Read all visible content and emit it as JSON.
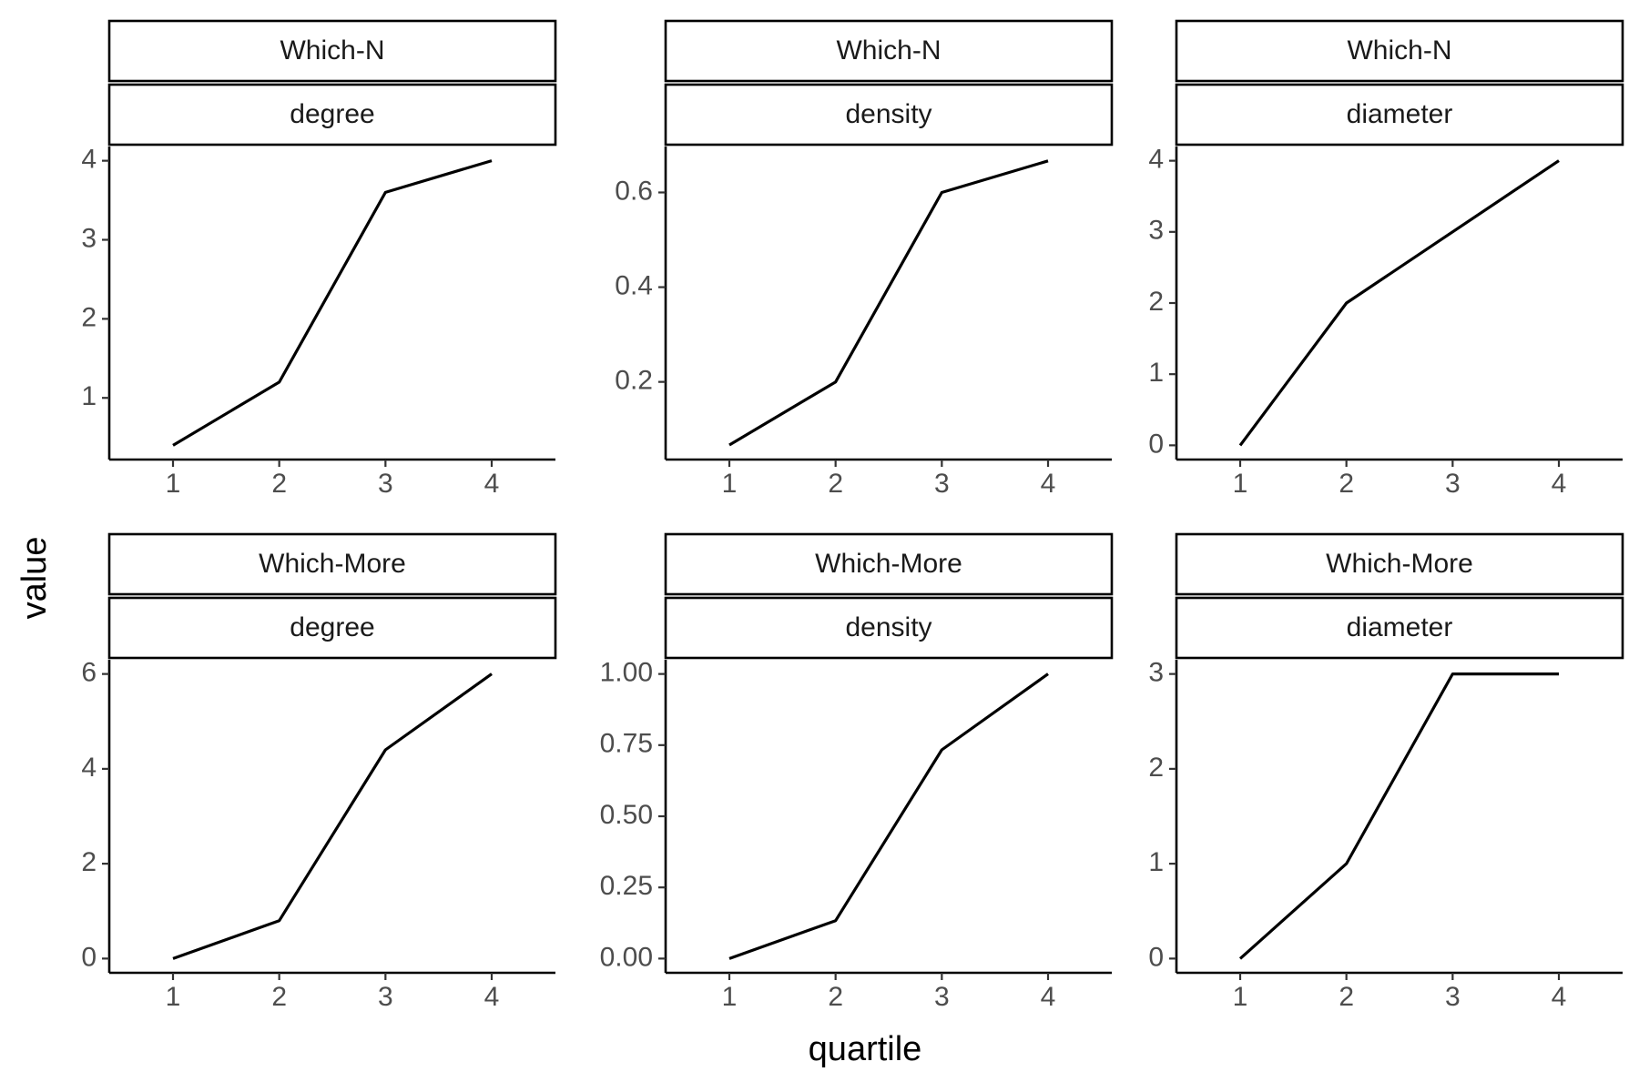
{
  "chart_data": {
    "type": "line",
    "xlabel": "quartile",
    "ylabel": "value",
    "panels": [
      {
        "strip": [
          "Which-N",
          "degree"
        ],
        "x": [
          1,
          2,
          3,
          4
        ],
        "y": [
          0.4,
          1.2,
          3.6,
          4.0
        ],
        "xlim": [
          0.4,
          4.6
        ],
        "ylim": [
          0.22,
          4.18
        ],
        "yticks": [
          1,
          2,
          3,
          4
        ],
        "yticklabels": [
          "1",
          "2",
          "3",
          "4"
        ],
        "xticks": [
          1,
          2,
          3,
          4
        ]
      },
      {
        "strip": [
          "Which-N",
          "density"
        ],
        "x": [
          1,
          2,
          3,
          4
        ],
        "y": [
          0.0667,
          0.2,
          0.6,
          0.6667
        ],
        "xlim": [
          0.4,
          4.6
        ],
        "ylim": [
          0.036,
          0.697
        ],
        "yticks": [
          0.2,
          0.4,
          0.6
        ],
        "yticklabels": [
          "0.2",
          "0.4",
          "0.6"
        ],
        "xticks": [
          1,
          2,
          3,
          4
        ]
      },
      {
        "strip": [
          "Which-N",
          "diameter"
        ],
        "x": [
          1,
          2,
          3,
          4
        ],
        "y": [
          0,
          2,
          3,
          4
        ],
        "xlim": [
          0.4,
          4.6
        ],
        "ylim": [
          -0.2,
          4.2
        ],
        "yticks": [
          0,
          1,
          2,
          3,
          4
        ],
        "yticklabels": [
          "0",
          "1",
          "2",
          "3",
          "4"
        ],
        "xticks": [
          1,
          2,
          3,
          4
        ]
      },
      {
        "strip": [
          "Which-More",
          "degree"
        ],
        "x": [
          1,
          2,
          3,
          4
        ],
        "y": [
          0,
          0.8,
          4.4,
          6.0
        ],
        "xlim": [
          0.4,
          4.6
        ],
        "ylim": [
          -0.3,
          6.3
        ],
        "yticks": [
          0,
          2,
          4,
          6
        ],
        "yticklabels": [
          "0",
          "2",
          "4",
          "6"
        ],
        "xticks": [
          1,
          2,
          3,
          4
        ]
      },
      {
        "strip": [
          "Which-More",
          "density"
        ],
        "x": [
          1,
          2,
          3,
          4
        ],
        "y": [
          0,
          0.1333,
          0.7333,
          1.0
        ],
        "xlim": [
          0.4,
          4.6
        ],
        "ylim": [
          -0.05,
          1.05
        ],
        "yticks": [
          0,
          0.25,
          0.5,
          0.75,
          1.0
        ],
        "yticklabels": [
          "0.00",
          "0.25",
          "0.50",
          "0.75",
          "1.00"
        ],
        "xticks": [
          1,
          2,
          3,
          4
        ]
      },
      {
        "strip": [
          "Which-More",
          "diameter"
        ],
        "x": [
          1,
          2,
          3,
          4
        ],
        "y": [
          0,
          1,
          3,
          3
        ],
        "xlim": [
          0.4,
          4.6
        ],
        "ylim": [
          -0.15,
          3.15
        ],
        "yticks": [
          0,
          1,
          2,
          3
        ],
        "yticklabels": [
          "0",
          "1",
          "2",
          "3"
        ],
        "xticks": [
          1,
          2,
          3,
          4
        ]
      }
    ],
    "grid": false,
    "legend": "none"
  }
}
